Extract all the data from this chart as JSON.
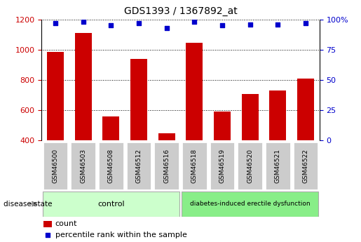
{
  "title": "GDS1393 / 1367892_at",
  "samples": [
    "GSM46500",
    "GSM46503",
    "GSM46508",
    "GSM46512",
    "GSM46516",
    "GSM46518",
    "GSM46519",
    "GSM46520",
    "GSM46521",
    "GSM46522"
  ],
  "counts": [
    985,
    1110,
    560,
    940,
    445,
    1045,
    590,
    705,
    730,
    810
  ],
  "percentile_ranks": [
    97,
    98,
    95,
    97,
    93,
    98,
    95,
    96,
    96,
    97
  ],
  "ylim_left": [
    400,
    1200
  ],
  "ylim_right": [
    0,
    100
  ],
  "yticks_left": [
    400,
    600,
    800,
    1000,
    1200
  ],
  "yticks_right": [
    0,
    25,
    50,
    75,
    100
  ],
  "bar_color": "#cc0000",
  "scatter_color": "#0000cc",
  "bar_width": 0.6,
  "control_label": "control",
  "disease_label": "diabetes-induced erectile dysfunction",
  "control_color": "#ccffcc",
  "disease_color": "#88ee88",
  "sample_box_color": "#cccccc",
  "legend_count_label": "count",
  "legend_pct_label": "percentile rank within the sample",
  "disease_state_label": "disease state"
}
